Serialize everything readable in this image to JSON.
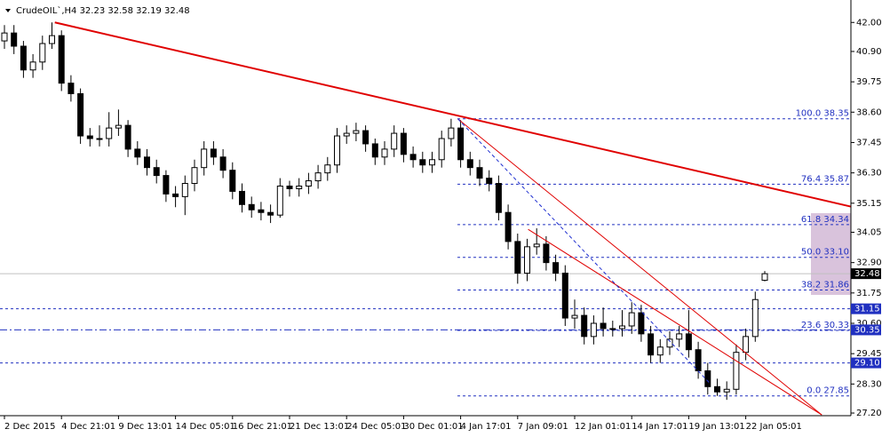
{
  "chart_data": {
    "type": "candlestick",
    "title": "CrudeOIL`,H4  32.23 32.58 32.19 32.48",
    "categories": [
      "2 Dec 2015",
      null,
      null,
      null,
      null,
      null,
      "4 Dec 21:01",
      null,
      null,
      null,
      null,
      null,
      "9 Dec 13:01",
      null,
      null,
      null,
      null,
      null,
      "14 Dec 05:01",
      null,
      null,
      null,
      null,
      null,
      "16 Dec 21:01",
      null,
      null,
      null,
      null,
      null,
      "21 Dec 13:01",
      null,
      null,
      null,
      null,
      null,
      "24 Dec 05:01",
      null,
      null,
      null,
      null,
      null,
      "30 Dec 01:01",
      null,
      null,
      null,
      null,
      null,
      "4 Jan 17:01",
      null,
      null,
      null,
      null,
      null,
      "7 Jan 09:01",
      null,
      null,
      null,
      null,
      null,
      "12 Jan 01:01",
      null,
      null,
      null,
      null,
      null,
      "14 Jan 17:01",
      null,
      null,
      null,
      null,
      null,
      "19 Jan 13:01",
      null,
      null,
      null,
      null,
      null,
      "22 Jan 05:01",
      null,
      null
    ],
    "open": [
      41.3,
      41.6,
      41.1,
      40.2,
      40.5,
      41.2,
      41.5,
      39.7,
      39.3,
      37.7,
      37.6,
      37.6,
      38.0,
      38.1,
      37.2,
      36.9,
      36.5,
      36.2,
      35.5,
      35.4,
      35.9,
      36.5,
      37.2,
      36.9,
      36.4,
      35.6,
      35.1,
      34.9,
      34.8,
      34.7,
      35.8,
      35.7,
      35.8,
      36.0,
      36.3,
      36.6,
      37.7,
      37.8,
      37.9,
      37.4,
      36.9,
      37.2,
      37.8,
      37.0,
      36.8,
      36.6,
      36.8,
      37.6,
      38.0,
      36.8,
      36.5,
      36.1,
      35.9,
      34.8,
      33.7,
      32.5,
      33.5,
      33.6,
      32.9,
      32.5,
      30.8,
      30.9,
      30.1,
      30.6,
      30.4,
      30.4,
      30.5,
      31.0,
      30.2,
      29.4,
      29.7,
      30.0,
      30.2,
      29.6,
      28.8,
      28.2,
      28.0,
      28.1,
      29.5,
      30.1,
      32.23
    ],
    "high": [
      41.9,
      41.9,
      41.3,
      40.8,
      41.5,
      42.0,
      41.7,
      40.0,
      39.5,
      38.0,
      38.1,
      38.6,
      38.7,
      38.3,
      37.5,
      37.2,
      36.8,
      36.4,
      35.8,
      36.2,
      36.8,
      37.5,
      37.5,
      37.2,
      36.7,
      35.9,
      35.4,
      35.2,
      35.1,
      36.1,
      36.0,
      36.1,
      36.3,
      36.6,
      36.9,
      38.0,
      38.1,
      38.2,
      38.1,
      37.6,
      37.5,
      38.1,
      38.0,
      37.3,
      37.1,
      37.1,
      37.9,
      38.35,
      38.3,
      37.1,
      36.8,
      36.4,
      36.2,
      35.1,
      34.0,
      33.8,
      34.2,
      33.9,
      33.2,
      32.8,
      31.5,
      31.2,
      30.9,
      31.2,
      30.7,
      31.1,
      31.4,
      31.3,
      30.5,
      30.0,
      30.3,
      30.5,
      31.1,
      29.9,
      29.1,
      28.5,
      28.4,
      29.8,
      30.4,
      31.8,
      32.58
    ],
    "low": [
      41.0,
      40.8,
      39.9,
      39.9,
      40.2,
      41.0,
      39.4,
      39.0,
      37.4,
      37.3,
      37.3,
      37.3,
      37.7,
      36.9,
      36.6,
      36.2,
      35.9,
      35.2,
      35.0,
      34.7,
      35.6,
      36.2,
      36.6,
      36.1,
      35.3,
      34.8,
      34.6,
      34.5,
      34.4,
      34.6,
      35.4,
      35.4,
      35.5,
      35.7,
      36.0,
      36.3,
      37.4,
      37.5,
      37.1,
      36.6,
      36.6,
      36.9,
      36.7,
      36.5,
      36.3,
      36.3,
      36.5,
      37.3,
      36.5,
      36.2,
      35.8,
      35.6,
      34.5,
      33.4,
      32.1,
      32.2,
      33.2,
      32.6,
      32.2,
      30.5,
      30.4,
      29.8,
      29.8,
      30.1,
      30.1,
      30.1,
      30.2,
      29.9,
      29.1,
      29.1,
      29.4,
      29.7,
      29.3,
      28.5,
      27.9,
      27.85,
      27.7,
      27.9,
      29.2,
      29.9,
      32.19
    ],
    "close": [
      41.6,
      41.1,
      40.2,
      40.5,
      41.2,
      41.5,
      39.7,
      39.3,
      37.7,
      37.6,
      37.6,
      38.0,
      38.1,
      37.2,
      36.9,
      36.5,
      36.2,
      35.5,
      35.4,
      35.9,
      36.5,
      37.2,
      36.9,
      36.4,
      35.6,
      35.1,
      34.9,
      34.8,
      34.7,
      35.8,
      35.7,
      35.8,
      36.0,
      36.3,
      36.6,
      37.7,
      37.8,
      37.9,
      37.4,
      36.9,
      37.2,
      37.8,
      37.0,
      36.8,
      36.6,
      36.8,
      37.6,
      38.0,
      36.8,
      36.5,
      36.1,
      35.9,
      34.8,
      33.7,
      32.5,
      33.5,
      33.6,
      32.9,
      32.5,
      30.8,
      30.9,
      30.1,
      30.6,
      30.4,
      30.4,
      30.5,
      31.0,
      30.2,
      29.4,
      29.7,
      30.0,
      30.2,
      29.6,
      28.8,
      28.2,
      28.0,
      28.1,
      29.5,
      30.1,
      31.5,
      32.48
    ],
    "ylim": [
      27.1,
      42.85
    ],
    "yticks": [
      {
        "value": 42,
        "label": "42.00"
      },
      {
        "value": 40.9,
        "label": "40.90"
      },
      {
        "value": 39.75,
        "label": "39.75"
      },
      {
        "value": 38.6,
        "label": "38.60"
      },
      {
        "value": 37.45,
        "label": "37.45"
      },
      {
        "value": 36.3,
        "label": "36.30"
      },
      {
        "value": 35.15,
        "label": "35.15"
      },
      {
        "value": 34.05,
        "label": "34.05"
      },
      {
        "value": 32.9,
        "label": "32.90"
      },
      {
        "value": 31.75,
        "label": "31.75"
      },
      {
        "value": 30.6,
        "label": "30.60"
      },
      {
        "value": 29.45,
        "label": "29.45"
      },
      {
        "value": 28.3,
        "label": "28.30"
      },
      {
        "value": 27.2,
        "label": "27.20"
      }
    ],
    "last_price": {
      "value": 32.48,
      "label": "32.48"
    },
    "price_lines": [
      {
        "value": 31.15,
        "label": "31.15",
        "style": "dash"
      },
      {
        "value": 30.35,
        "label": "30.35",
        "style": "dashdot"
      },
      {
        "value": 29.1,
        "label": "29.10",
        "style": "dash"
      }
    ],
    "fibonacci": [
      {
        "value": 38.35,
        "label": "100.0 38.35"
      },
      {
        "value": 35.87,
        "label": "76.4 35.87"
      },
      {
        "value": 34.34,
        "label": "61.8 34.34"
      },
      {
        "value": 33.1,
        "label": "50.0 33.10"
      },
      {
        "value": 31.86,
        "label": "38.2 31.86"
      },
      {
        "value": 30.33,
        "label": "23.6 30.33"
      },
      {
        "value": 27.85,
        "label": "0.0 27.85"
      }
    ],
    "trendlines": [
      {
        "x": [
          5.3,
          89.1
        ],
        "y": [
          42.0,
          35.02
        ],
        "color": "#e00000",
        "width": 2,
        "dash": false
      },
      {
        "x": [
          47.7,
          86.0
        ],
        "y": [
          38.35,
          27.13
        ],
        "color": "#e00000",
        "width": 1,
        "dash": false
      },
      {
        "x": [
          55.1,
          86.0
        ],
        "y": [
          34.16,
          27.13
        ],
        "color": "#e00000",
        "width": 1,
        "dash": false
      },
      {
        "x": [
          47.7,
          74.3
        ],
        "y": [
          38.35,
          28.3
        ],
        "color": "#2030d0",
        "width": 1,
        "dash": true
      }
    ],
    "candle_color": "#000000",
    "line_color": "#2030c0"
  }
}
